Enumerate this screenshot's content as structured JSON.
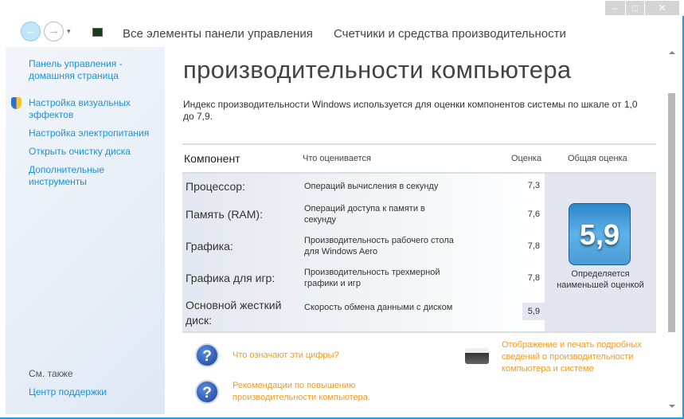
{
  "window": {
    "minimize": "–",
    "maximize": "□",
    "close": "✕"
  },
  "nav": {
    "back": "←",
    "forward": "→",
    "dropdown": "▾"
  },
  "breadcrumb": [
    "Все элементы панели управления",
    "Счетчики и средства производительности"
  ],
  "sidebar": {
    "items": [
      {
        "label": "Панель управления - домашняя страница"
      },
      {
        "label": "Настройка визуальных эффектов"
      },
      {
        "label": "Настройка электропитания"
      },
      {
        "label": "Открыть очистку диска"
      },
      {
        "label": "Дополнительные инструменты"
      }
    ],
    "see_also": "См. также",
    "support": "Центр поддержки"
  },
  "main": {
    "title": "производительности компьютера",
    "description": "Индекс производительности Windows используется для оценки компонентов системы по шкале от 1,0 до 7,9.",
    "headers": {
      "component": "Компонент",
      "what": "Что оценивается",
      "score": "Оценка",
      "overall": "Общая оценка"
    },
    "rows": [
      {
        "component": "Процессор:",
        "what": "Операций вычисления в секунду",
        "score": "7,3"
      },
      {
        "component": "Память (RAM):",
        "what": "Операций доступа к памяти в секунду",
        "score": "7,6"
      },
      {
        "component": "Графика:",
        "what": "Производительность рабочего стола для Windows Aero",
        "score": "7,8"
      },
      {
        "component": "Графика для игр:",
        "what": "Производительность трехмерной графики и игр",
        "score": "7,8"
      },
      {
        "component": "Основной жесткий диск:",
        "what": "Скорость обмена данными с диском",
        "score": "5,9"
      }
    ],
    "overall_score": "5,9",
    "overall_caption": "Определяется наименьшей оценкой",
    "links": {
      "what_numbers": "Что означают эти цифры?",
      "recommendations": "Рекомендации по повышению производительности компьютера.",
      "print": "Отображение и печать подробных сведений о производительности компьютера и системе"
    },
    "link_color": "#f39a1d"
  }
}
